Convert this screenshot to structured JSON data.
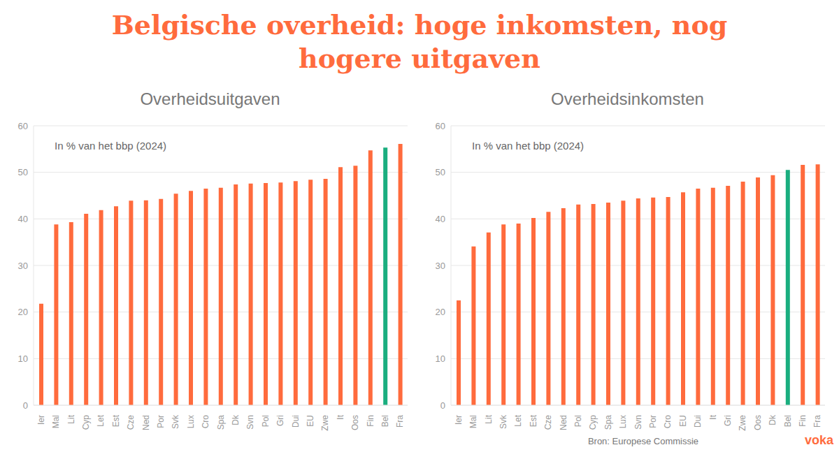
{
  "title": "Belgische overheid: hoge inkomsten, nog hogere uitgaven",
  "source": "Bron: Europese Commissie",
  "logo": "voka",
  "chart_data": [
    {
      "type": "bar",
      "title": "Overheidsuitgaven",
      "subtitle": "In % van het bbp (2024)",
      "categories": [
        "Ier",
        "Mal",
        "Lit",
        "Cyp",
        "Let",
        "Est",
        "Cze",
        "Ned",
        "Por",
        "Svk",
        "Lux",
        "Cro",
        "Spa",
        "Dk",
        "Svn",
        "Pol",
        "Gri",
        "Dui",
        "EU",
        "Zwe",
        "It",
        "Oos",
        "Fin",
        "Bel",
        "Fra"
      ],
      "values": [
        21.8,
        38.8,
        39.3,
        41.1,
        41.9,
        42.7,
        43.9,
        44.0,
        44.3,
        45.4,
        46.0,
        46.5,
        46.7,
        47.4,
        47.6,
        47.7,
        47.8,
        48.1,
        48.4,
        48.6,
        51.1,
        51.4,
        54.7,
        55.3,
        56.1
      ],
      "colors": [
        "#ff6b3d",
        "#ff6b3d",
        "#ff6b3d",
        "#ff6b3d",
        "#ff6b3d",
        "#ff6b3d",
        "#ff6b3d",
        "#ff6b3d",
        "#ff6b3d",
        "#ff6b3d",
        "#ff6b3d",
        "#ff6b3d",
        "#ff6b3d",
        "#ff6b3d",
        "#ff6b3d",
        "#ff6b3d",
        "#ff6b3d",
        "#ff6b3d",
        "#ff6b3d",
        "#ff6b3d",
        "#ff6b3d",
        "#ff6b3d",
        "#ff6b3d",
        "#1aae7f",
        "#ff6b3d"
      ],
      "ylim": [
        0,
        60
      ],
      "yticks": [
        0,
        10,
        20,
        30,
        40,
        50,
        60
      ],
      "grid": true
    },
    {
      "type": "bar",
      "title": "Overheidsinkomsten",
      "subtitle": "In % van het bbp (2024)",
      "categories": [
        "Ier",
        "Mal",
        "Lit",
        "Svk",
        "Let",
        "Est",
        "Cze",
        "Ned",
        "Pol",
        "Cyp",
        "Spa",
        "Lux",
        "Svn",
        "Por",
        "Cro",
        "EU",
        "Dui",
        "It",
        "Gri",
        "Zwe",
        "Oos",
        "Dk",
        "Bel",
        "Fin",
        "Fra"
      ],
      "values": [
        22.5,
        34.1,
        37.1,
        38.8,
        39.0,
        40.2,
        41.5,
        42.3,
        43.1,
        43.2,
        43.5,
        43.9,
        44.4,
        44.6,
        44.7,
        45.7,
        46.5,
        46.7,
        47.1,
        48.0,
        48.9,
        49.4,
        50.5,
        51.6,
        51.7
      ],
      "colors": [
        "#ff6b3d",
        "#ff6b3d",
        "#ff6b3d",
        "#ff6b3d",
        "#ff6b3d",
        "#ff6b3d",
        "#ff6b3d",
        "#ff6b3d",
        "#ff6b3d",
        "#ff6b3d",
        "#ff6b3d",
        "#ff6b3d",
        "#ff6b3d",
        "#ff6b3d",
        "#ff6b3d",
        "#ff6b3d",
        "#ff6b3d",
        "#ff6b3d",
        "#ff6b3d",
        "#ff6b3d",
        "#ff6b3d",
        "#ff6b3d",
        "#1aae7f",
        "#ff6b3d",
        "#ff6b3d"
      ],
      "ylim": [
        0,
        60
      ],
      "yticks": [
        0,
        10,
        20,
        30,
        40,
        50,
        60
      ],
      "grid": true
    }
  ]
}
